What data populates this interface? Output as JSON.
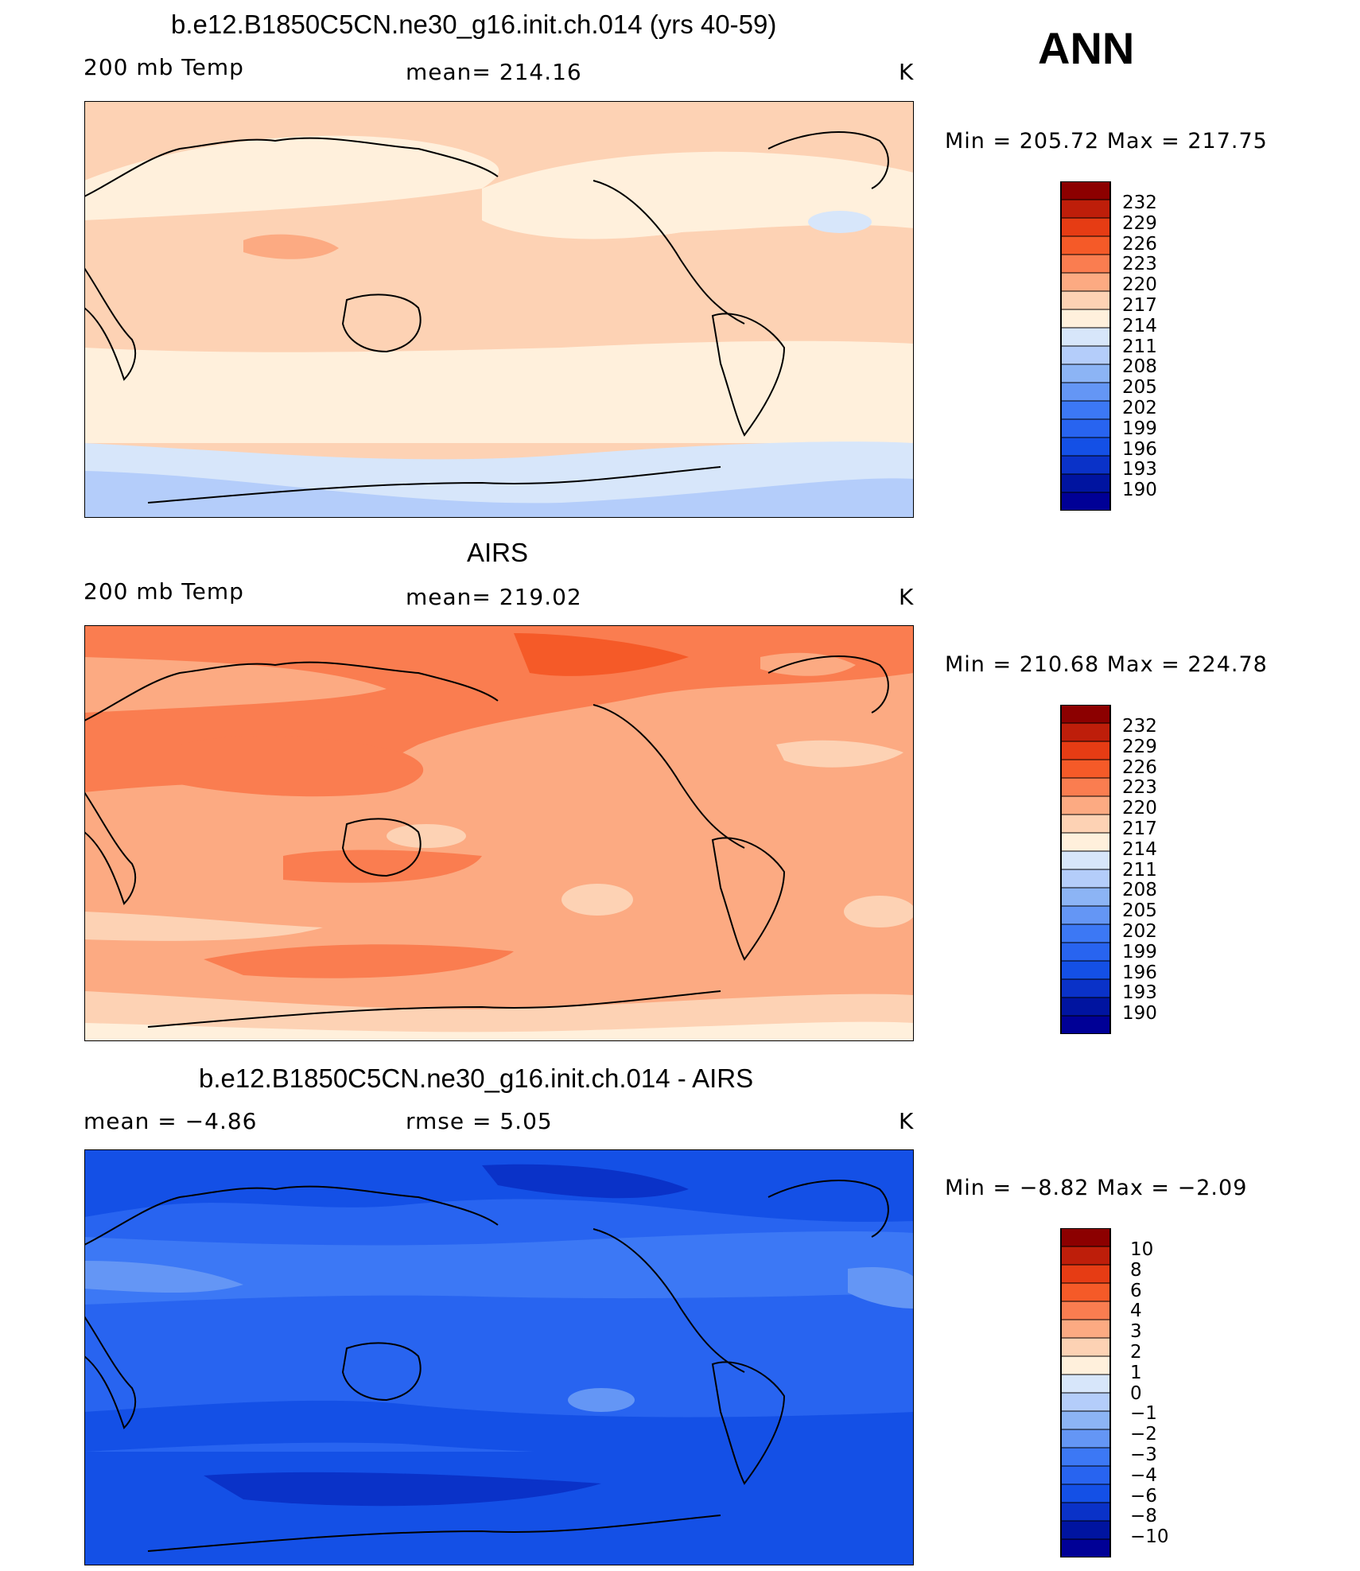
{
  "season": "ANN",
  "colors": {
    "warm_scale": [
      "#000096",
      "#0014a0",
      "#0a32c8",
      "#1450e6",
      "#2864f0",
      "#3c78f5",
      "#6496f5",
      "#8cb4f5",
      "#b4cdfa",
      "#d7e6fa",
      "#fff0dc",
      "#fdd2b4",
      "#fcaa82",
      "#fa7d50",
      "#f55a28",
      "#e63c14",
      "#be1e0a",
      "#8c0000"
    ]
  },
  "panels": [
    {
      "title": "b.e12.B1850C5CN.ne30_g16.init.ch.014 (yrs 40-59)",
      "left_label": "200 mb Temp",
      "center_label": "mean=  214.16",
      "units": "K",
      "minmax": "Min  =  205.72  Max  =  217.75",
      "colorbar_ticks": [
        "232",
        "229",
        "226",
        "223",
        "220",
        "217",
        "214",
        "211",
        "208",
        "205",
        "202",
        "199",
        "196",
        "193",
        "190"
      ],
      "background_color": "#fdd2b4",
      "bands": [
        {
          "color": "#fff0dc"
        },
        {
          "color": "#fcaa82"
        },
        {
          "color": "#d7e6fa"
        },
        {
          "color": "#b4cdfa"
        }
      ]
    },
    {
      "title": "AIRS",
      "left_label": "200 mb Temp",
      "center_label": "mean=  219.02",
      "units": "K",
      "minmax": "Min  =  210.68  Max  =  224.78",
      "colorbar_ticks": [
        "232",
        "229",
        "226",
        "223",
        "220",
        "217",
        "214",
        "211",
        "208",
        "205",
        "202",
        "199",
        "196",
        "193",
        "190"
      ],
      "background_color": "#fcaa82"
    },
    {
      "title": "b.e12.B1850C5CN.ne30_g16.init.ch.014 - AIRS",
      "left_label": "mean  =    −4.86",
      "center_label": "rmse  =     5.05",
      "units": "K",
      "minmax": "Min  =   −8.82  Max  =   −2.09",
      "colorbar_ticks": [
        "10",
        "8",
        "6",
        "4",
        "3",
        "2",
        "1",
        "0",
        "−1",
        "−2",
        "−3",
        "−4",
        "−6",
        "−8",
        "−10"
      ],
      "background_color": "#2864f0"
    }
  ]
}
